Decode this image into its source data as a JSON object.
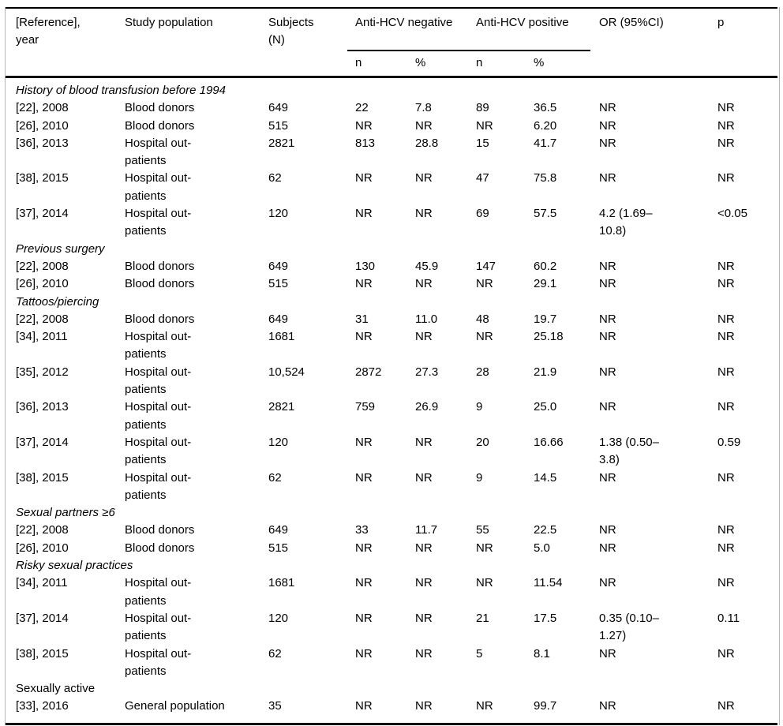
{
  "table": {
    "header": {
      "reference": "[Reference],\nyear",
      "study_population": "Study population",
      "subjects": "Subjects\n(N)",
      "anti_hcv_negative": "Anti-HCV negative",
      "anti_hcv_positive": "Anti-HCV positive",
      "or_ci": "OR (95%CI)",
      "p": "p",
      "sub_n": "n",
      "sub_pct": "%"
    },
    "rows": [
      {
        "type": "section",
        "label": "History of blood transfusion before 1994",
        "italic": true
      },
      {
        "type": "data",
        "reference": "[22], 2008",
        "population": "Blood donors",
        "subjects": "649",
        "neg_n": "22",
        "neg_pct": "7.8",
        "pos_n": "89",
        "pos_pct": "36.5",
        "or": "NR",
        "p": "NR"
      },
      {
        "type": "data",
        "reference": "[26], 2010",
        "population": "Blood donors",
        "subjects": "515",
        "neg_n": "NR",
        "neg_pct": "NR",
        "pos_n": "NR",
        "pos_pct": "6.20",
        "or": "NR",
        "p": "NR"
      },
      {
        "type": "data",
        "reference": "[36], 2013",
        "population": "Hospital out-\npatients",
        "subjects": "2821",
        "neg_n": "813",
        "neg_pct": "28.8",
        "pos_n": "15",
        "pos_pct": "41.7",
        "or": "NR",
        "p": "NR"
      },
      {
        "type": "data",
        "reference": "[38], 2015",
        "population": "Hospital out-\npatients",
        "subjects": "62",
        "neg_n": "NR",
        "neg_pct": "NR",
        "pos_n": "47",
        "pos_pct": "75.8",
        "or": "NR",
        "p": "NR"
      },
      {
        "type": "data",
        "reference": "[37], 2014",
        "population": "Hospital out-\npatients",
        "subjects": "120",
        "neg_n": "NR",
        "neg_pct": "NR",
        "pos_n": "69",
        "pos_pct": "57.5",
        "or": "4.2 (1.69–\n10.8)",
        "p": "<0.05"
      },
      {
        "type": "section",
        "label": "Previous surgery",
        "italic": true
      },
      {
        "type": "data",
        "reference": "[22], 2008",
        "population": "Blood donors",
        "subjects": "649",
        "neg_n": "130",
        "neg_pct": "45.9",
        "pos_n": "147",
        "pos_pct": "60.2",
        "or": "NR",
        "p": "NR"
      },
      {
        "type": "data",
        "reference": "[26], 2010",
        "population": "Blood donors",
        "subjects": "515",
        "neg_n": "NR",
        "neg_pct": "NR",
        "pos_n": "NR",
        "pos_pct": "29.1",
        "or": "NR",
        "p": "NR"
      },
      {
        "type": "section",
        "label": "Tattoos/piercing",
        "italic": true
      },
      {
        "type": "data",
        "reference": "[22], 2008",
        "population": "Blood donors",
        "subjects": "649",
        "neg_n": "31",
        "neg_pct": "11.0",
        "pos_n": "48",
        "pos_pct": "19.7",
        "or": "NR",
        "p": "NR"
      },
      {
        "type": "data",
        "reference": "[34], 2011",
        "population": "Hospital out-\npatients",
        "subjects": "1681",
        "neg_n": "NR",
        "neg_pct": "NR",
        "pos_n": "NR",
        "pos_pct": "25.18",
        "or": "NR",
        "p": "NR"
      },
      {
        "type": "data",
        "reference": "[35], 2012",
        "population": "Hospital out-\npatients",
        "subjects": "10,524",
        "neg_n": "2872",
        "neg_pct": "27.3",
        "pos_n": "28",
        "pos_pct": "21.9",
        "or": "NR",
        "p": "NR"
      },
      {
        "type": "data",
        "reference": "[36], 2013",
        "population": "Hospital out-\npatients",
        "subjects": "2821",
        "neg_n": "759",
        "neg_pct": "26.9",
        "pos_n": "9",
        "pos_pct": "25.0",
        "or": "NR",
        "p": "NR"
      },
      {
        "type": "data",
        "reference": "[37], 2014",
        "population": "Hospital out-\npatients",
        "subjects": "120",
        "neg_n": "NR",
        "neg_pct": "NR",
        "pos_n": "20",
        "pos_pct": "16.66",
        "or": "1.38 (0.50–\n3.8)",
        "p": "0.59"
      },
      {
        "type": "data",
        "reference": "[38], 2015",
        "population": "Hospital out-\npatients",
        "subjects": "62",
        "neg_n": "NR",
        "neg_pct": "NR",
        "pos_n": "9",
        "pos_pct": "14.5",
        "or": "NR",
        "p": "NR"
      },
      {
        "type": "section",
        "label": "Sexual partners ≥6",
        "italic": true
      },
      {
        "type": "data",
        "reference": "[22], 2008",
        "population": "Blood donors",
        "subjects": "649",
        "neg_n": "33",
        "neg_pct": "11.7",
        "pos_n": "55",
        "pos_pct": "22.5",
        "or": "NR",
        "p": "NR"
      },
      {
        "type": "data",
        "reference": "[26], 2010",
        "population": "Blood donors",
        "subjects": "515",
        "neg_n": "NR",
        "neg_pct": "NR",
        "pos_n": "NR",
        "pos_pct": "5.0",
        "or": "NR",
        "p": "NR"
      },
      {
        "type": "section",
        "label": "Risky sexual practices",
        "italic": true
      },
      {
        "type": "data",
        "reference": "[34], 2011",
        "population": "Hospital out-\npatients",
        "subjects": "1681",
        "neg_n": "NR",
        "neg_pct": "NR",
        "pos_n": "NR",
        "pos_pct": "11.54",
        "or": "NR",
        "p": "NR"
      },
      {
        "type": "data",
        "reference": "[37], 2014",
        "population": "Hospital out-\npatients",
        "subjects": "120",
        "neg_n": "NR",
        "neg_pct": "NR",
        "pos_n": "21",
        "pos_pct": "17.5",
        "or": "0.35 (0.10–\n1.27)",
        "p": "0.11"
      },
      {
        "type": "data",
        "reference": "[38], 2015",
        "population": "Hospital out-\npatients",
        "subjects": "62",
        "neg_n": "NR",
        "neg_pct": "NR",
        "pos_n": "5",
        "pos_pct": "8.1",
        "or": "NR",
        "p": "NR"
      },
      {
        "type": "section",
        "label": "Sexually active",
        "italic": false
      },
      {
        "type": "data",
        "reference": "[33], 2016",
        "population": "General population",
        "subjects": "35",
        "neg_n": "NR",
        "neg_pct": "NR",
        "pos_n": "NR",
        "pos_pct": "99.7",
        "or": "NR",
        "p": "NR"
      }
    ],
    "colors": {
      "text": "#000000",
      "rule": "#000000",
      "frame_border": "#b5b5b5",
      "background": "#ffffff"
    }
  }
}
